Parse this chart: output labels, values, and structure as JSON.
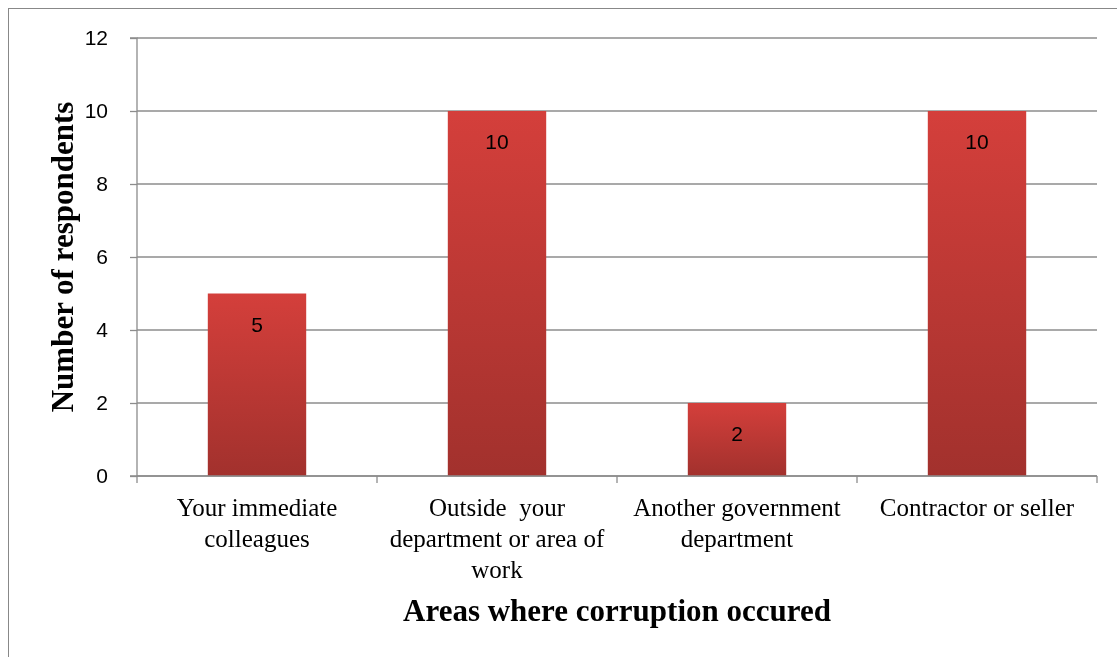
{
  "chart_data": {
    "type": "bar",
    "categories": [
      "Your immediate colleagues",
      "Outside  your department or area of work",
      "Another government department",
      "Contractor or seller"
    ],
    "values": [
      5,
      10,
      2,
      10
    ],
    "color": "#c23a36",
    "ylim": [
      0,
      12
    ],
    "yticks": [
      0,
      2,
      4,
      6,
      8,
      10,
      12
    ],
    "grid": "y",
    "data_labels": true,
    "xlabel": "Areas where corruption occured",
    "ylabel": "Number of respondents"
  }
}
